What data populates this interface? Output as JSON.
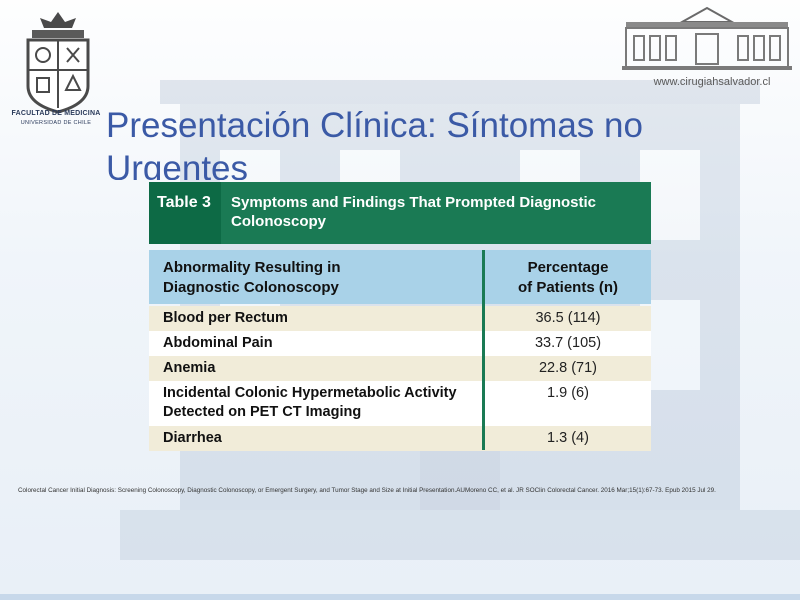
{
  "slide": {
    "title": "Presentación Clínica: Síntomas no Urgentes",
    "faculty": "FACULTAD DE MEDICINA",
    "university": "UNIVERSIDAD DE CHILE",
    "website": "www.cirugiahsalvador.cl",
    "citation": "Colorectal Cancer Initial Diagnosis: Screening Colonoscopy, Diagnostic Colonoscopy, or Emergent Surgery, and Tumor Stage and Size at Initial Presentation.AUMoreno CC, et al. JR SOClin Colorectal Cancer. 2016 Mar;15(1):67-73. Epub 2015 Jul 29."
  },
  "table": {
    "number": "Table 3",
    "caption": "Symptoms and Findings That Prompted Diagnostic Colonoscopy",
    "header_a_line1": "Abnormality Resulting in",
    "header_a_line2": "Diagnostic Colonoscopy",
    "header_b_line1": "Percentage",
    "header_b_line2": "of Patients (n)",
    "rows": [
      {
        "finding": "Blood per Rectum",
        "value": "36.5 (114)"
      },
      {
        "finding": "Abdominal Pain",
        "value": "33.7 (105)"
      },
      {
        "finding": "Anemia",
        "value": "22.8 (71)"
      },
      {
        "finding": "Incidental Colonic Hypermetabolic Activity Detected on PET CT Imaging",
        "value": "1.9 (6)"
      },
      {
        "finding": "Diarrhea",
        "value": "1.3 (4)"
      }
    ]
  },
  "colors": {
    "title": "#3b5aa6",
    "table_header": "#1a7a54",
    "column_header": "#a9d2e8",
    "row_alt": "#f1ecd9"
  }
}
